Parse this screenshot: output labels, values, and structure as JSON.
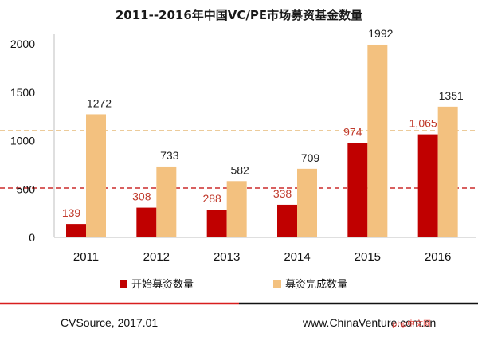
{
  "chart_data": {
    "type": "bar",
    "title": "2011--2016年中国VC/PE市场募资基金数量",
    "categories": [
      "2011",
      "2012",
      "2013",
      "2014",
      "2015",
      "2016"
    ],
    "series": [
      {
        "name": "开始募资数量",
        "values": [
          139,
          308,
          288,
          338,
          974,
          1065
        ],
        "labels": [
          "139",
          "308",
          "288",
          "338",
          "974",
          "1,065"
        ],
        "color": "#c00000"
      },
      {
        "name": "募资完成数量",
        "values": [
          1272,
          733,
          582,
          709,
          1992,
          1351
        ],
        "labels": [
          "1272",
          "733",
          "582",
          "709",
          "1992",
          "1351"
        ],
        "color": "#f3c17f"
      }
    ],
    "yticks": [
      "0",
      "500",
      "1000",
      "1500",
      "2000"
    ],
    "ylim": [
      0,
      2000
    ],
    "reference_lines": [
      {
        "value": 1105,
        "color": "#e9c48c",
        "style": "dashed"
      },
      {
        "value": 510,
        "color": "#c00000",
        "style": "dashed"
      }
    ],
    "grid": false,
    "legend_position": "bottom"
  },
  "footer": {
    "source": "CVSource, 2017.01",
    "website": "www.ChinaVenture.com.cn"
  },
  "watermark": "php中文网",
  "colors": {
    "footer_line_left": "#d81e1e",
    "footer_line_right": "#111111"
  }
}
